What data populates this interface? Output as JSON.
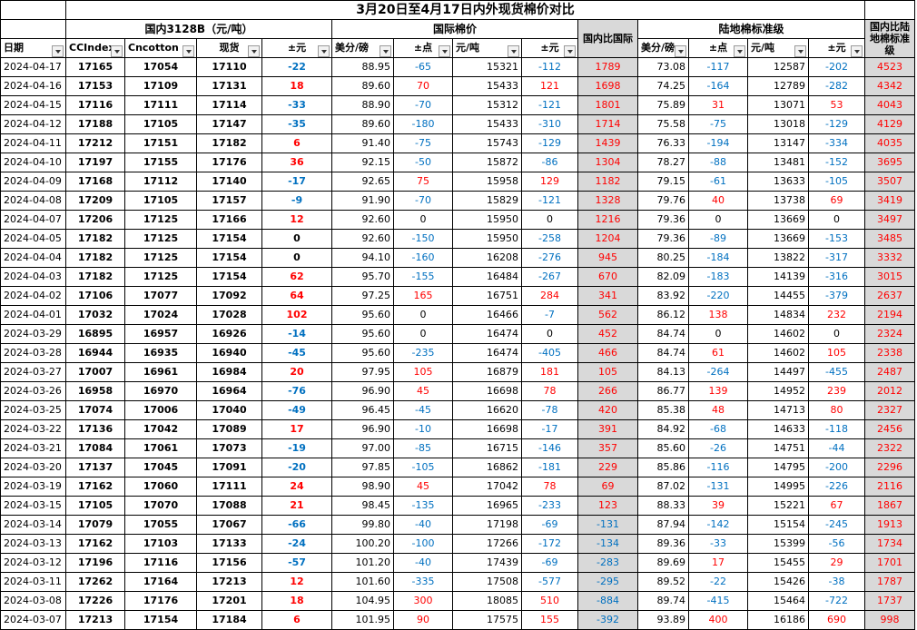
{
  "title": "3月20日至4月17日内外现货棉价对比",
  "groups": {
    "domestic": "国内3128B（元/吨）",
    "international": "国际棉价",
    "landed": "陆地棉标准级"
  },
  "headers": {
    "date": "日期",
    "ccindex": "CCIndex",
    "cncotton": "Cncotton",
    "spot": "现货",
    "d_yuan": "±元",
    "intl_usc": "美分/磅",
    "intl_pts": "±点",
    "intl_yuan": "元/吨",
    "intl_d": "±元",
    "dom_vs_intl": "国内比国际",
    "land_usc": "美分/磅",
    "land_pts": "±点",
    "land_yuan": "元/吨",
    "land_d": "±元",
    "dom_vs_land": "国内比陆地棉标准级"
  },
  "colors": {
    "positive": "#ff0000",
    "negative": "#0070c0",
    "gray_column": "#d9d9d9"
  },
  "rows": [
    [
      "2024-04-17",
      "17165",
      "17054",
      "17110",
      "-22",
      "88.95",
      "-65",
      "15321",
      "-112",
      "1789",
      "73.08",
      "-117",
      "12587",
      "-202",
      "4523"
    ],
    [
      "2024-04-16",
      "17153",
      "17109",
      "17131",
      "18",
      "89.60",
      "70",
      "15433",
      "121",
      "1698",
      "74.25",
      "-164",
      "12789",
      "-282",
      "4342"
    ],
    [
      "2024-04-15",
      "17116",
      "17111",
      "17114",
      "-33",
      "88.90",
      "-70",
      "15312",
      "-121",
      "1801",
      "75.89",
      "31",
      "13071",
      "53",
      "4043"
    ],
    [
      "2024-04-12",
      "17188",
      "17105",
      "17147",
      "-35",
      "89.60",
      "-180",
      "15433",
      "-310",
      "1714",
      "75.58",
      "-75",
      "13018",
      "-129",
      "4129"
    ],
    [
      "2024-04-11",
      "17212",
      "17151",
      "17182",
      "6",
      "91.40",
      "-75",
      "15743",
      "-129",
      "1439",
      "76.33",
      "-194",
      "13147",
      "-334",
      "4035"
    ],
    [
      "2024-04-10",
      "17197",
      "17155",
      "17176",
      "36",
      "92.15",
      "-50",
      "15872",
      "-86",
      "1304",
      "78.27",
      "-88",
      "13481",
      "-152",
      "3695"
    ],
    [
      "2024-04-09",
      "17168",
      "17112",
      "17140",
      "-17",
      "92.65",
      "75",
      "15958",
      "129",
      "1182",
      "79.15",
      "-61",
      "13633",
      "-105",
      "3507"
    ],
    [
      "2024-04-08",
      "17209",
      "17105",
      "17157",
      "-9",
      "91.90",
      "-70",
      "15829",
      "-121",
      "1328",
      "79.76",
      "40",
      "13738",
      "69",
      "3419"
    ],
    [
      "2024-04-07",
      "17206",
      "17125",
      "17166",
      "12",
      "92.60",
      "0",
      "15950",
      "0",
      "1216",
      "79.36",
      "0",
      "13669",
      "0",
      "3497"
    ],
    [
      "2024-04-05",
      "17182",
      "17125",
      "17154",
      "0",
      "92.60",
      "-150",
      "15950",
      "-258",
      "1204",
      "79.36",
      "-89",
      "13669",
      "-153",
      "3485"
    ],
    [
      "2024-04-04",
      "17182",
      "17125",
      "17154",
      "0",
      "94.10",
      "-160",
      "16208",
      "-276",
      "945",
      "80.25",
      "-184",
      "13822",
      "-317",
      "3332"
    ],
    [
      "2024-04-03",
      "17182",
      "17125",
      "17154",
      "62",
      "95.70",
      "-155",
      "16484",
      "-267",
      "670",
      "82.09",
      "-183",
      "14139",
      "-316",
      "3015"
    ],
    [
      "2024-04-02",
      "17106",
      "17077",
      "17092",
      "64",
      "97.25",
      "165",
      "16751",
      "284",
      "341",
      "83.92",
      "-220",
      "14455",
      "-379",
      "2637"
    ],
    [
      "2024-04-01",
      "17032",
      "17024",
      "17028",
      "102",
      "95.60",
      "0",
      "16466",
      "-7",
      "562",
      "86.12",
      "138",
      "14834",
      "232",
      "2194"
    ],
    [
      "2024-03-29",
      "16895",
      "16957",
      "16926",
      "-14",
      "95.60",
      "0",
      "16474",
      "0",
      "452",
      "84.74",
      "0",
      "14602",
      "0",
      "2324"
    ],
    [
      "2024-03-28",
      "16944",
      "16935",
      "16940",
      "-45",
      "95.60",
      "-235",
      "16474",
      "-405",
      "466",
      "84.74",
      "61",
      "14602",
      "105",
      "2338"
    ],
    [
      "2024-03-27",
      "17007",
      "16961",
      "16984",
      "20",
      "97.95",
      "105",
      "16879",
      "181",
      "105",
      "84.13",
      "-264",
      "14497",
      "-455",
      "2487"
    ],
    [
      "2024-03-26",
      "16958",
      "16970",
      "16964",
      "-76",
      "96.90",
      "45",
      "16698",
      "78",
      "266",
      "86.77",
      "139",
      "14952",
      "239",
      "2012"
    ],
    [
      "2024-03-25",
      "17074",
      "17006",
      "17040",
      "-49",
      "96.45",
      "-45",
      "16620",
      "-78",
      "420",
      "85.38",
      "48",
      "14713",
      "80",
      "2327"
    ],
    [
      "2024-03-22",
      "17136",
      "17042",
      "17089",
      "17",
      "96.90",
      "-10",
      "16698",
      "-17",
      "391",
      "84.92",
      "-68",
      "14633",
      "-118",
      "2456"
    ],
    [
      "2024-03-21",
      "17084",
      "17061",
      "17073",
      "-19",
      "97.00",
      "-85",
      "16715",
      "-146",
      "357",
      "85.60",
      "-26",
      "14751",
      "-44",
      "2322"
    ],
    [
      "2024-03-20",
      "17137",
      "17045",
      "17091",
      "-20",
      "97.85",
      "-105",
      "16862",
      "-181",
      "229",
      "85.86",
      "-116",
      "14795",
      "-200",
      "2296"
    ],
    [
      "2024-03-19",
      "17162",
      "17060",
      "17111",
      "24",
      "98.90",
      "45",
      "17042",
      "78",
      "69",
      "87.02",
      "-131",
      "14995",
      "-226",
      "2116"
    ],
    [
      "2024-03-15",
      "17105",
      "17070",
      "17088",
      "21",
      "98.45",
      "-135",
      "16965",
      "-233",
      "123",
      "88.33",
      "39",
      "15221",
      "67",
      "1867"
    ],
    [
      "2024-03-14",
      "17079",
      "17055",
      "17067",
      "-66",
      "99.80",
      "-40",
      "17198",
      "-69",
      "-131",
      "87.94",
      "-142",
      "15154",
      "-245",
      "1913"
    ],
    [
      "2024-03-13",
      "17162",
      "17103",
      "17133",
      "-24",
      "100.20",
      "-100",
      "17266",
      "-172",
      "-134",
      "89.36",
      "-33",
      "15399",
      "-56",
      "1734"
    ],
    [
      "2024-03-12",
      "17196",
      "17116",
      "17156",
      "-57",
      "101.20",
      "-40",
      "17439",
      "-69",
      "-283",
      "89.69",
      "17",
      "15455",
      "29",
      "1701"
    ],
    [
      "2024-03-11",
      "17262",
      "17164",
      "17213",
      "12",
      "101.60",
      "-335",
      "17508",
      "-577",
      "-295",
      "89.52",
      "-22",
      "15426",
      "-38",
      "1787"
    ],
    [
      "2024-03-08",
      "17226",
      "17176",
      "17201",
      "18",
      "104.95",
      "300",
      "18085",
      "510",
      "-884",
      "89.74",
      "-415",
      "15464",
      "-722",
      "1737"
    ],
    [
      "2024-03-07",
      "17213",
      "17154",
      "17184",
      "6",
      "101.95",
      "90",
      "17575",
      "155",
      "-392",
      "93.89",
      "400",
      "16186",
      "690",
      "998"
    ]
  ]
}
